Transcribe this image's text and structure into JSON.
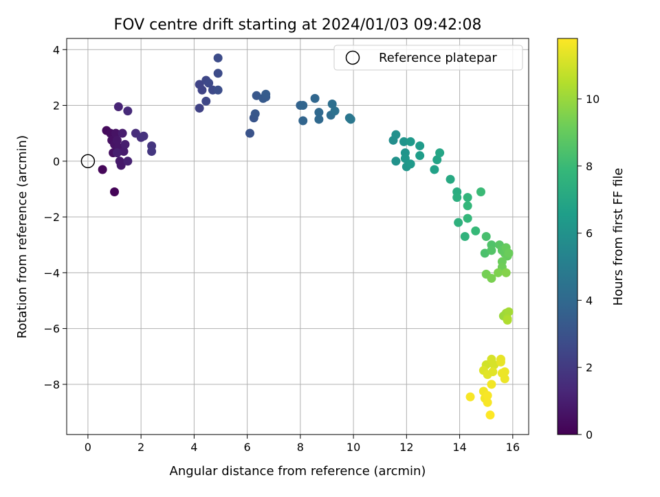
{
  "chart_data": {
    "type": "scatter",
    "title": "FOV centre drift starting at 2024/01/03 09:42:08",
    "xlabel": "Angular distance from reference (arcmin)",
    "ylabel": "Rotation from reference (arcmin)",
    "xlim": [
      -0.8,
      16.6
    ],
    "ylim": [
      -9.8,
      4.4
    ],
    "xticks": [
      0,
      2,
      4,
      6,
      8,
      10,
      12,
      14,
      16
    ],
    "yticks": [
      4,
      2,
      0,
      -2,
      -4,
      -6,
      -8
    ],
    "xtick_labels": [
      "0",
      "2",
      "4",
      "6",
      "8",
      "10",
      "12",
      "14",
      "16"
    ],
    "ytick_labels": [
      "4",
      "2",
      "0",
      "−2",
      "−4",
      "−6",
      "−8"
    ],
    "grid": true,
    "legend": {
      "placement": "top-right",
      "entries": [
        {
          "label": "Reference platepar",
          "marker": "open-circle"
        }
      ]
    },
    "reference_point": {
      "x": 0,
      "y": 0
    },
    "colorbar": {
      "label": "Hours from first FF file",
      "range": [
        0,
        11.8
      ],
      "ticks": [
        0,
        2,
        4,
        6,
        8,
        10
      ],
      "tick_labels": [
        "0",
        "2",
        "4",
        "6",
        "8",
        "10"
      ],
      "colormap": "viridis"
    },
    "colormap_stops": [
      "#440154",
      "#482878",
      "#3e4a89",
      "#31688e",
      "#26828e",
      "#1f9e89",
      "#35b779",
      "#6dcd59",
      "#b4de2c",
      "#fde725"
    ],
    "points": [
      {
        "x": 1.0,
        "y": -1.1,
        "t": 0.1
      },
      {
        "x": 0.55,
        "y": -0.3,
        "t": 0.2
      },
      {
        "x": 0.7,
        "y": 1.1,
        "t": 0.3
      },
      {
        "x": 0.85,
        "y": 1.0,
        "t": 0.4
      },
      {
        "x": 0.9,
        "y": 0.75,
        "t": 0.5
      },
      {
        "x": 0.95,
        "y": 0.3,
        "t": 0.5
      },
      {
        "x": 1.0,
        "y": 0.6,
        "t": 0.6
      },
      {
        "x": 1.05,
        "y": 1.0,
        "t": 0.6
      },
      {
        "x": 1.1,
        "y": 0.75,
        "t": 0.7
      },
      {
        "x": 1.15,
        "y": 0.5,
        "t": 0.7
      },
      {
        "x": 1.2,
        "y": 0.0,
        "t": 0.8
      },
      {
        "x": 1.25,
        "y": -0.15,
        "t": 0.8
      },
      {
        "x": 1.3,
        "y": 1.0,
        "t": 0.9
      },
      {
        "x": 1.35,
        "y": 0.35,
        "t": 0.9
      },
      {
        "x": 1.4,
        "y": 0.6,
        "t": 1.0
      },
      {
        "x": 1.1,
        "y": 0.3,
        "t": 1.0
      },
      {
        "x": 1.5,
        "y": 0.0,
        "t": 1.1
      },
      {
        "x": 1.15,
        "y": 1.95,
        "t": 1.2
      },
      {
        "x": 1.5,
        "y": 1.8,
        "t": 1.4
      },
      {
        "x": 1.8,
        "y": 1.0,
        "t": 1.5
      },
      {
        "x": 2.0,
        "y": 0.85,
        "t": 1.6
      },
      {
        "x": 2.1,
        "y": 0.9,
        "t": 1.7
      },
      {
        "x": 2.4,
        "y": 0.55,
        "t": 1.8
      },
      {
        "x": 2.4,
        "y": 0.35,
        "t": 1.9
      },
      {
        "x": 4.2,
        "y": 1.9,
        "t": 2.3
      },
      {
        "x": 4.2,
        "y": 2.75,
        "t": 2.4
      },
      {
        "x": 4.3,
        "y": 2.55,
        "t": 2.4
      },
      {
        "x": 4.45,
        "y": 2.15,
        "t": 2.5
      },
      {
        "x": 4.45,
        "y": 2.9,
        "t": 2.5
      },
      {
        "x": 4.55,
        "y": 2.8,
        "t": 2.6
      },
      {
        "x": 4.7,
        "y": 2.55,
        "t": 2.6
      },
      {
        "x": 4.9,
        "y": 3.7,
        "t": 2.7
      },
      {
        "x": 4.9,
        "y": 3.15,
        "t": 2.7
      },
      {
        "x": 4.9,
        "y": 2.55,
        "t": 2.8
      },
      {
        "x": 6.1,
        "y": 1.0,
        "t": 3.0
      },
      {
        "x": 6.25,
        "y": 1.55,
        "t": 3.1
      },
      {
        "x": 6.3,
        "y": 1.7,
        "t": 3.2
      },
      {
        "x": 6.35,
        "y": 2.35,
        "t": 3.2
      },
      {
        "x": 6.6,
        "y": 2.25,
        "t": 3.3
      },
      {
        "x": 6.7,
        "y": 2.3,
        "t": 3.3
      },
      {
        "x": 6.7,
        "y": 2.4,
        "t": 3.4
      },
      {
        "x": 8.0,
        "y": 2.0,
        "t": 3.7
      },
      {
        "x": 8.1,
        "y": 2.0,
        "t": 3.8
      },
      {
        "x": 8.1,
        "y": 1.45,
        "t": 3.8
      },
      {
        "x": 8.55,
        "y": 2.25,
        "t": 3.9
      },
      {
        "x": 8.7,
        "y": 1.75,
        "t": 4.0
      },
      {
        "x": 8.7,
        "y": 1.5,
        "t": 4.0
      },
      {
        "x": 9.15,
        "y": 1.65,
        "t": 4.2
      },
      {
        "x": 9.2,
        "y": 2.05,
        "t": 4.3
      },
      {
        "x": 9.3,
        "y": 1.8,
        "t": 4.4
      },
      {
        "x": 9.85,
        "y": 1.55,
        "t": 4.6
      },
      {
        "x": 9.9,
        "y": 1.5,
        "t": 4.7
      },
      {
        "x": 11.5,
        "y": 0.75,
        "t": 5.8
      },
      {
        "x": 11.6,
        "y": 0.95,
        "t": 5.9
      },
      {
        "x": 11.6,
        "y": 0.0,
        "t": 6.0
      },
      {
        "x": 11.9,
        "y": 0.7,
        "t": 6.1
      },
      {
        "x": 11.95,
        "y": 0.3,
        "t": 6.1
      },
      {
        "x": 11.95,
        "y": 0.1,
        "t": 6.2
      },
      {
        "x": 12.0,
        "y": -0.2,
        "t": 6.2
      },
      {
        "x": 12.15,
        "y": 0.7,
        "t": 6.3
      },
      {
        "x": 12.15,
        "y": -0.1,
        "t": 6.3
      },
      {
        "x": 12.5,
        "y": 0.55,
        "t": 6.4
      },
      {
        "x": 12.5,
        "y": 0.2,
        "t": 6.5
      },
      {
        "x": 13.05,
        "y": -0.3,
        "t": 6.7
      },
      {
        "x": 13.15,
        "y": 0.05,
        "t": 6.8
      },
      {
        "x": 13.25,
        "y": 0.3,
        "t": 6.9
      },
      {
        "x": 13.65,
        "y": -0.65,
        "t": 7.1
      },
      {
        "x": 13.9,
        "y": -1.1,
        "t": 7.3
      },
      {
        "x": 13.9,
        "y": -1.3,
        "t": 7.4
      },
      {
        "x": 13.95,
        "y": -2.2,
        "t": 7.5
      },
      {
        "x": 14.2,
        "y": -2.7,
        "t": 7.6
      },
      {
        "x": 14.3,
        "y": -1.3,
        "t": 7.7
      },
      {
        "x": 14.3,
        "y": -1.6,
        "t": 7.8
      },
      {
        "x": 14.3,
        "y": -2.05,
        "t": 7.8
      },
      {
        "x": 14.6,
        "y": -2.5,
        "t": 7.9
      },
      {
        "x": 14.8,
        "y": -1.1,
        "t": 8.0
      },
      {
        "x": 15.0,
        "y": -2.7,
        "t": 8.3
      },
      {
        "x": 14.95,
        "y": -3.3,
        "t": 8.4
      },
      {
        "x": 15.2,
        "y": -3.0,
        "t": 8.5
      },
      {
        "x": 15.2,
        "y": -3.2,
        "t": 8.6
      },
      {
        "x": 15.5,
        "y": -3.0,
        "t": 8.7
      },
      {
        "x": 15.6,
        "y": -3.2,
        "t": 8.8
      },
      {
        "x": 15.7,
        "y": -3.3,
        "t": 8.9
      },
      {
        "x": 15.75,
        "y": -3.1,
        "t": 9.0
      },
      {
        "x": 15.8,
        "y": -3.4,
        "t": 9.0
      },
      {
        "x": 15.85,
        "y": -3.3,
        "t": 9.1
      },
      {
        "x": 15.6,
        "y": -3.6,
        "t": 9.1
      },
      {
        "x": 15.6,
        "y": -3.8,
        "t": 9.2
      },
      {
        "x": 15.0,
        "y": -4.05,
        "t": 9.3
      },
      {
        "x": 15.2,
        "y": -4.2,
        "t": 9.4
      },
      {
        "x": 15.45,
        "y": -4.0,
        "t": 9.5
      },
      {
        "x": 15.75,
        "y": -4.0,
        "t": 9.6
      },
      {
        "x": 15.65,
        "y": -5.55,
        "t": 10.0
      },
      {
        "x": 15.75,
        "y": -5.45,
        "t": 10.1
      },
      {
        "x": 15.85,
        "y": -5.4,
        "t": 10.2
      },
      {
        "x": 15.8,
        "y": -5.65,
        "t": 10.3
      },
      {
        "x": 15.8,
        "y": -5.7,
        "t": 10.4
      },
      {
        "x": 15.0,
        "y": -7.3,
        "t": 11.0
      },
      {
        "x": 15.2,
        "y": -7.1,
        "t": 11.1
      },
      {
        "x": 15.3,
        "y": -7.3,
        "t": 11.1
      },
      {
        "x": 14.9,
        "y": -7.5,
        "t": 11.2
      },
      {
        "x": 15.05,
        "y": -7.65,
        "t": 11.3
      },
      {
        "x": 15.25,
        "y": -7.55,
        "t": 11.3
      },
      {
        "x": 15.55,
        "y": -7.1,
        "t": 11.4
      },
      {
        "x": 15.55,
        "y": -7.2,
        "t": 11.4
      },
      {
        "x": 15.7,
        "y": -7.55,
        "t": 11.5
      },
      {
        "x": 15.7,
        "y": -7.8,
        "t": 11.5
      },
      {
        "x": 15.6,
        "y": -7.6,
        "t": 11.5
      },
      {
        "x": 15.2,
        "y": -8.0,
        "t": 11.6
      },
      {
        "x": 14.9,
        "y": -8.25,
        "t": 11.6
      },
      {
        "x": 14.95,
        "y": -8.5,
        "t": 11.6
      },
      {
        "x": 15.05,
        "y": -8.4,
        "t": 11.7
      },
      {
        "x": 14.4,
        "y": -8.45,
        "t": 11.7
      },
      {
        "x": 15.05,
        "y": -8.65,
        "t": 11.7
      },
      {
        "x": 15.15,
        "y": -9.1,
        "t": 11.8
      }
    ]
  }
}
